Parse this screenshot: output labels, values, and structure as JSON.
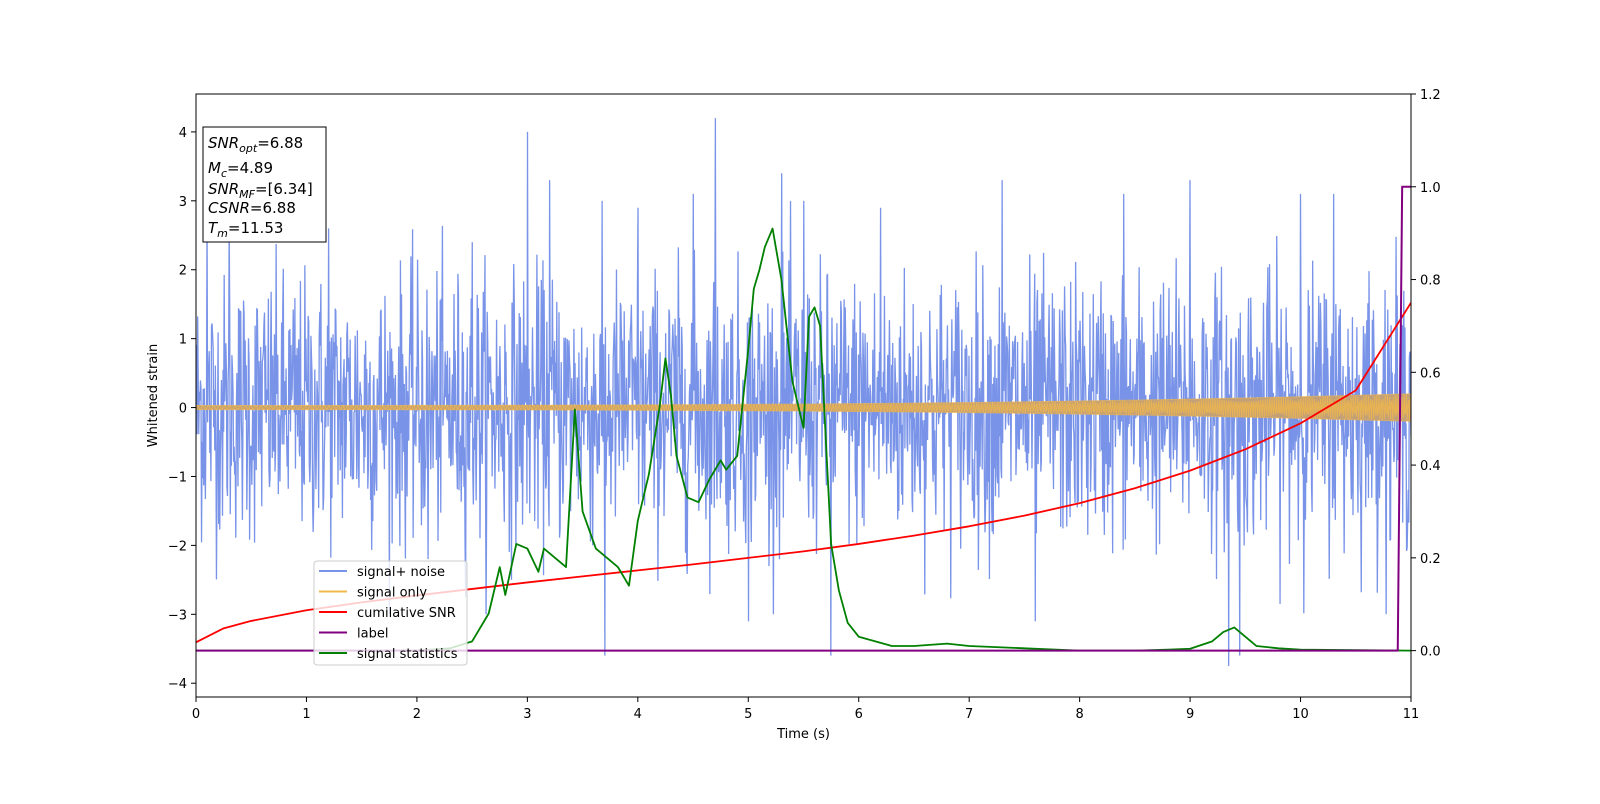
{
  "chart_data": {
    "type": "line",
    "xlabel": "Time (s)",
    "ylabel": "Whitened strain",
    "xlim": [
      0,
      11
    ],
    "ylim": [
      -4.2,
      4.55
    ],
    "y2lim": [
      -0.1,
      1.2
    ],
    "x_ticks": [
      "0",
      "1",
      "2",
      "3",
      "4",
      "5",
      "6",
      "7",
      "8",
      "9",
      "10",
      "11"
    ],
    "y_ticks": [
      "4",
      "3",
      "2",
      "1",
      "0",
      "−1",
      "−2",
      "−3",
      "−4"
    ],
    "y_tick_values": [
      4,
      3,
      2,
      1,
      0,
      -1,
      -2,
      -3,
      -4
    ],
    "y2_ticks": [
      "1.2",
      "1.0",
      "0.8",
      "0.6",
      "0.4",
      "0.2",
      "0.0"
    ],
    "y2_tick_values": [
      1.2,
      1.0,
      0.8,
      0.6,
      0.4,
      0.2,
      0.0
    ],
    "info_box": {
      "snr_opt": {
        "main": "SNR",
        "sub": "opt",
        "value": "=6.88"
      },
      "mc": {
        "main": "M",
        "sub": "c",
        "value": "=4.89"
      },
      "snr_mf": {
        "main": "SNR",
        "sub": "MF",
        "value": "=[6.34]"
      },
      "csnr": {
        "main": "CSNR",
        "value": "=6.88"
      },
      "tm": {
        "main": "T",
        "sub": "m",
        "value": "=11.53"
      }
    },
    "legend": [
      "signal+ noise",
      "signal only",
      "cumilative SNR",
      "label",
      "signal statistics"
    ],
    "legend_position": "lower-left",
    "colors": {
      "signal_noise": "#7893e8",
      "signal_only": "#f0b84a",
      "signal_band": "#c4a077",
      "cumulative_snr": "#ff0000",
      "label": "#800080",
      "signal_statistics": "#008000"
    },
    "series": [
      {
        "name": "signal+ noise",
        "axis": "left",
        "kind": "noise_band",
        "samples": 2200,
        "sigma": 0.95,
        "peaks": [
          [
            0.1,
            2.8
          ],
          [
            0.3,
            2.6
          ],
          [
            1.2,
            2.6
          ],
          [
            2.1,
            -2.2
          ],
          [
            2.5,
            2.4
          ],
          [
            3.0,
            4.0
          ],
          [
            3.2,
            3.3
          ],
          [
            3.7,
            -3.6
          ],
          [
            4.0,
            2.9
          ],
          [
            4.7,
            4.2
          ],
          [
            4.5,
            3.1
          ],
          [
            5.0,
            -3.1
          ],
          [
            5.3,
            3.4
          ],
          [
            5.5,
            3.0
          ],
          [
            5.75,
            -3.6
          ],
          [
            6.2,
            2.9
          ],
          [
            7.3,
            3.3
          ],
          [
            7.6,
            -3.1
          ],
          [
            8.4,
            3.1
          ],
          [
            9.0,
            3.3
          ],
          [
            9.35,
            -3.75
          ],
          [
            9.45,
            -3.6
          ],
          [
            10.0,
            3.1
          ],
          [
            10.3,
            3.1
          ]
        ]
      },
      {
        "name": "signal only",
        "axis": "left",
        "kind": "chirp",
        "amplitude_start": 0.03,
        "amplitude_end": 0.2
      },
      {
        "name": "cumilative SNR",
        "axis": "right",
        "x": [
          0,
          0.25,
          0.5,
          1,
          1.5,
          2,
          2.5,
          3,
          3.5,
          4,
          4.5,
          5,
          5.5,
          6,
          6.5,
          7,
          7.5,
          8,
          8.5,
          9,
          9.5,
          10,
          10.5,
          11
        ],
        "y": [
          0.018,
          0.048,
          0.064,
          0.087,
          0.104,
          0.119,
          0.133,
          0.147,
          0.16,
          0.173,
          0.186,
          0.2,
          0.214,
          0.23,
          0.248,
          0.268,
          0.291,
          0.318,
          0.35,
          0.388,
          0.434,
          0.49,
          0.561,
          0.75
        ]
      },
      {
        "name": "label",
        "axis": "right",
        "x": [
          0,
          10.88,
          10.92,
          11
        ],
        "y": [
          0,
          0,
          1,
          1
        ]
      },
      {
        "name": "signal statistics",
        "axis": "right",
        "x": [
          0,
          1,
          2,
          2.3,
          2.5,
          2.65,
          2.75,
          2.8,
          2.9,
          3.0,
          3.1,
          3.15,
          3.25,
          3.35,
          3.43,
          3.5,
          3.62,
          3.72,
          3.82,
          3.92,
          4.0,
          4.1,
          4.2,
          4.25,
          4.3,
          4.35,
          4.45,
          4.55,
          4.65,
          4.75,
          4.8,
          4.9,
          5.0,
          5.05,
          5.1,
          5.15,
          5.22,
          5.3,
          5.4,
          5.5,
          5.55,
          5.6,
          5.65,
          5.75,
          5.82,
          5.9,
          6.0,
          6.3,
          6.5,
          6.8,
          7.0,
          7.5,
          8.0,
          8.5,
          8.8,
          9.0,
          9.2,
          9.3,
          9.4,
          9.5,
          9.6,
          9.8,
          10.0,
          11.0
        ],
        "y": [
          0,
          0,
          0,
          0.005,
          0.02,
          0.08,
          0.18,
          0.12,
          0.23,
          0.22,
          0.17,
          0.22,
          0.2,
          0.18,
          0.52,
          0.3,
          0.22,
          0.2,
          0.18,
          0.14,
          0.28,
          0.38,
          0.53,
          0.63,
          0.55,
          0.42,
          0.33,
          0.32,
          0.37,
          0.41,
          0.39,
          0.42,
          0.65,
          0.78,
          0.82,
          0.87,
          0.91,
          0.8,
          0.58,
          0.48,
          0.72,
          0.74,
          0.7,
          0.23,
          0.13,
          0.06,
          0.03,
          0.01,
          0.01,
          0.015,
          0.01,
          0.005,
          0.0,
          0.0,
          0.002,
          0.004,
          0.02,
          0.04,
          0.05,
          0.03,
          0.01,
          0.005,
          0.002,
          0.0
        ]
      }
    ]
  }
}
